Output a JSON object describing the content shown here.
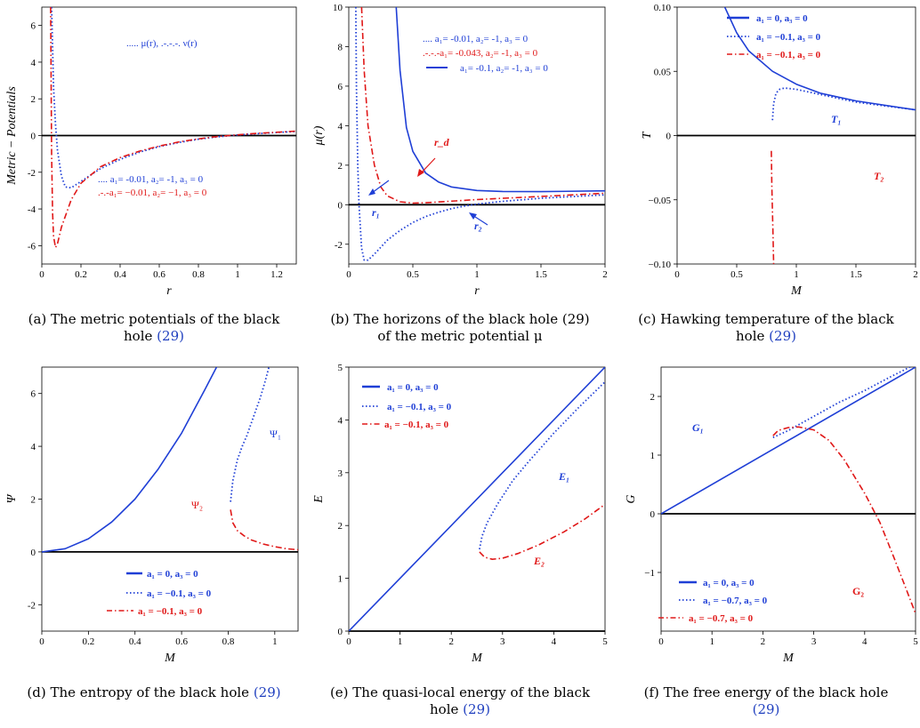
{
  "colors": {
    "blue": "#1f3fd6",
    "red": "#e01818",
    "black": "#000000",
    "ref": "#1f3fbf"
  },
  "panels": [
    {
      "caption": "(a) The metric potentials of the black hole",
      "caption_ref": "(29)"
    },
    {
      "caption": "(b) The horizons of the black hole (29) of the metric potential μ",
      "caption_ref": ""
    },
    {
      "caption": "(c) Hawking temperature of the black hole",
      "caption_ref": "(29)"
    },
    {
      "caption": "(d) The entropy of the black hole",
      "caption_ref": "(29)"
    },
    {
      "caption": "(e) The quasi-local energy of the black hole",
      "caption_ref": "(29)"
    },
    {
      "caption": "(f) The free energy of the black hole",
      "caption_ref": "(29)"
    }
  ],
  "chart_data": [
    {
      "type": "line",
      "xlabel": "r",
      "ylabel": "Metric − Potentials",
      "xlim": [
        0,
        1.3
      ],
      "ylim": [
        -7,
        7
      ],
      "xticks": [
        0,
        0.2,
        0.4,
        0.6,
        0.8,
        1,
        1.2
      ],
      "yticks": [
        -6,
        -4,
        -2,
        0,
        2,
        4,
        6
      ],
      "legend_top": "..... μ(r),  .-.-.-. ν(r)",
      "legend_bottom": [
        ".... a₁= -0.01, a₂= -1, a₃ = 0",
        ".-.-a₁= −0.01, a₂= −1, a₃ = 0"
      ],
      "series": [
        {
          "name": "μ(r)",
          "style": "dotted",
          "color": "blue",
          "x": [
            0.05,
            0.06,
            0.07,
            0.08,
            0.1,
            0.12,
            0.15,
            0.2,
            0.3,
            0.4,
            0.5,
            0.6,
            0.7,
            0.8,
            0.9,
            1.0,
            1.1,
            1.2,
            1.3
          ],
          "y": [
            7,
            2.6,
            0.6,
            -0.8,
            -2.2,
            -2.8,
            -2.85,
            -2.5,
            -1.8,
            -1.3,
            -0.9,
            -0.6,
            -0.38,
            -0.2,
            -0.07,
            0.03,
            0.1,
            0.17,
            0.22
          ]
        },
        {
          "name": "ν(r)",
          "style": "dashdot",
          "color": "red",
          "x": [
            0.045,
            0.048,
            0.05,
            0.055,
            0.06,
            0.07,
            0.08,
            0.1,
            0.15,
            0.2,
            0.3,
            0.4,
            0.5,
            0.6,
            0.7,
            0.8,
            0.9,
            1.0,
            1.1,
            1.2,
            1.3
          ],
          "y": [
            7,
            2,
            -1,
            -4.2,
            -5.5,
            -6.1,
            -5.9,
            -5,
            -3.5,
            -2.6,
            -1.7,
            -1.2,
            -0.85,
            -0.57,
            -0.35,
            -0.18,
            -0.05,
            0.04,
            0.12,
            0.18,
            0.24
          ]
        }
      ]
    },
    {
      "type": "line",
      "xlabel": "r",
      "ylabel": "μ(r)",
      "xlim": [
        0,
        2
      ],
      "ylim": [
        -3,
        10
      ],
      "xticks": [
        0,
        0.5,
        1,
        1.5,
        2
      ],
      "yticks": [
        -2,
        0,
        2,
        4,
        6,
        8,
        10
      ],
      "legend": [
        ".... a₁= -0.01, a₂= -1, a₃ = 0",
        ".-.-.-a₁= -0.043, a₂= -1, a₃ = 0",
        "a₁= -0.1, a₂= -1, a₃ = 0"
      ],
      "annotations": [
        "r_d",
        "r₁",
        "r₂"
      ],
      "series": [
        {
          "name": "a₁= -0.01",
          "style": "dotted",
          "color": "blue",
          "x": [
            0.055,
            0.06,
            0.07,
            0.08,
            0.1,
            0.12,
            0.15,
            0.2,
            0.3,
            0.4,
            0.5,
            0.6,
            0.7,
            0.8,
            0.9,
            1.0,
            1.2,
            1.5,
            2.0
          ],
          "y": [
            10,
            6,
            2,
            0,
            -2.2,
            -2.8,
            -2.8,
            -2.5,
            -1.8,
            -1.3,
            -0.9,
            -0.6,
            -0.38,
            -0.2,
            -0.07,
            0.03,
            0.17,
            0.33,
            0.5
          ]
        },
        {
          "name": "a₁= -0.043",
          "style": "dashdot",
          "color": "red",
          "x": [
            0.1,
            0.12,
            0.15,
            0.2,
            0.25,
            0.3,
            0.4,
            0.5,
            0.6,
            0.8,
            1.0,
            1.5,
            2.0
          ],
          "y": [
            10,
            6.8,
            4,
            2,
            0.9,
            0.45,
            0.15,
            0.08,
            0.1,
            0.18,
            0.26,
            0.42,
            0.58
          ]
        },
        {
          "name": "a₁= -0.1",
          "style": "solid",
          "color": "blue",
          "x": [
            0.37,
            0.4,
            0.45,
            0.5,
            0.6,
            0.7,
            0.8,
            1.0,
            1.2,
            1.5,
            2.0
          ],
          "y": [
            10,
            6.8,
            3.9,
            2.7,
            1.6,
            1.15,
            0.9,
            0.72,
            0.67,
            0.66,
            0.7
          ]
        }
      ]
    },
    {
      "type": "line",
      "xlabel": "M",
      "ylabel": "T",
      "xlim": [
        0,
        2
      ],
      "ylim": [
        -0.1,
        0.1
      ],
      "xticks": [
        0,
        0.5,
        1,
        1.5,
        2
      ],
      "yticks": [
        -0.1,
        -0.05,
        0,
        0.05,
        0.1
      ],
      "ytick_labels": [
        "−0.10",
        "−0.05",
        "0",
        "0.05",
        "0.10"
      ],
      "legend": [
        "a₁ = 0, a₃ = 0",
        "a₁ = −0.1, a₃ = 0",
        "a₁ = −0.1, a₃ = 0"
      ],
      "annotations": [
        "T₁",
        "T₂"
      ],
      "series": [
        {
          "name": "a₁ = 0",
          "style": "solid",
          "color": "blue",
          "x": [
            0.4,
            0.5,
            0.6,
            0.8,
            1.0,
            1.2,
            1.5,
            2.0
          ],
          "y": [
            0.1,
            0.08,
            0.066,
            0.05,
            0.04,
            0.033,
            0.027,
            0.02
          ]
        },
        {
          "name": "a₁ = −0.1",
          "style": "dotted",
          "color": "blue",
          "x": [
            0.8,
            0.81,
            0.83,
            0.86,
            0.9,
            1.0,
            1.2,
            1.5,
            2.0
          ],
          "y": [
            0.012,
            0.025,
            0.033,
            0.036,
            0.037,
            0.036,
            0.032,
            0.026,
            0.02
          ]
        },
        {
          "name": "a₁ = −0.1",
          "style": "dashdot",
          "color": "red",
          "x": [
            0.79,
            0.795,
            0.8,
            0.805,
            0.81
          ],
          "y": [
            -0.012,
            -0.04,
            -0.06,
            -0.08,
            -0.1
          ]
        }
      ]
    },
    {
      "type": "line",
      "xlabel": "M",
      "ylabel": "Ψ",
      "xlim": [
        0,
        1.1
      ],
      "ylim": [
        -3,
        7
      ],
      "xticks": [
        0,
        0.2,
        0.4,
        0.6,
        0.8,
        1
      ],
      "yticks": [
        -2,
        0,
        2,
        4,
        6
      ],
      "legend": [
        "a₁ = 0, a₃ = 0",
        "a₁ = −0.1, a₃ = 0",
        "a₁ = −0.1, a₃ = 0"
      ],
      "annotations": [
        "Ψ₁",
        "Ψ₂"
      ],
      "series": [
        {
          "name": "a₁ = 0",
          "style": "solid",
          "color": "blue",
          "x": [
            0,
            0.1,
            0.2,
            0.3,
            0.4,
            0.5,
            0.6,
            0.7,
            0.75
          ],
          "y": [
            0,
            0.12,
            0.5,
            1.13,
            2.0,
            3.14,
            4.5,
            6.15,
            7
          ]
        },
        {
          "name": "a₁ = −0.1 (Ψ₁)",
          "style": "dotted",
          "color": "blue",
          "x": [
            0.81,
            0.82,
            0.84,
            0.86,
            0.88,
            0.9,
            0.92,
            0.94,
            0.96,
            0.975
          ],
          "y": [
            1.9,
            2.7,
            3.5,
            4.0,
            4.4,
            4.9,
            5.4,
            5.9,
            6.5,
            7
          ]
        },
        {
          "name": "a₁ = −0.1 (Ψ₂)",
          "style": "dashdot",
          "color": "red",
          "x": [
            0.81,
            0.82,
            0.84,
            0.87,
            0.9,
            0.95,
            1.0,
            1.05,
            1.1
          ],
          "y": [
            1.6,
            1.1,
            0.8,
            0.6,
            0.45,
            0.3,
            0.2,
            0.12,
            0.08
          ]
        }
      ]
    },
    {
      "type": "line",
      "xlabel": "M",
      "ylabel": "E",
      "xlim": [
        0,
        5
      ],
      "ylim": [
        0,
        5
      ],
      "xticks": [
        0,
        1,
        2,
        3,
        4,
        5
      ],
      "yticks": [
        0,
        1,
        2,
        3,
        4,
        5
      ],
      "legend": [
        "a₁ = 0, a₃ = 0",
        "a₁ = −0.1, a₃ = 0",
        "a₁ = −0.1, a₃ = 0"
      ],
      "annotations": [
        "E₁",
        "E₂"
      ],
      "series": [
        {
          "name": "a₁ = 0",
          "style": "solid",
          "color": "blue",
          "x": [
            0,
            5
          ],
          "y": [
            0,
            5
          ]
        },
        {
          "name": "a₁ = −0.1 (E₁)",
          "style": "dotted",
          "color": "blue",
          "x": [
            2.55,
            2.6,
            2.7,
            2.9,
            3.2,
            3.5,
            4.0,
            4.5,
            5.0
          ],
          "y": [
            1.55,
            1.8,
            2.05,
            2.4,
            2.85,
            3.2,
            3.75,
            4.25,
            4.72
          ]
        },
        {
          "name": "a₁ = −0.1 (E₂)",
          "style": "dashdot",
          "color": "red",
          "x": [
            2.55,
            2.65,
            2.8,
            3.0,
            3.3,
            3.7,
            4.2,
            4.6,
            5.0
          ],
          "y": [
            1.5,
            1.4,
            1.36,
            1.38,
            1.47,
            1.63,
            1.88,
            2.12,
            2.4
          ]
        }
      ]
    },
    {
      "type": "line",
      "xlabel": "M",
      "ylabel": "G",
      "xlim": [
        0,
        5
      ],
      "ylim": [
        -2,
        2.5
      ],
      "xticks": [
        0,
        1,
        2,
        3,
        4,
        5
      ],
      "yticks": [
        -1,
        0,
        1,
        2
      ],
      "ytick_labels": [
        "−1",
        "0",
        "1",
        "2"
      ],
      "legend": [
        "a₁ = 0, a₃ = 0",
        "a₁ = −0.7, a₃ = 0",
        "a₁ = −0.7, a₃ = 0"
      ],
      "annotations": [
        "G₁",
        "G₂"
      ],
      "series": [
        {
          "name": "a₁ = 0",
          "style": "solid",
          "color": "blue",
          "x": [
            0,
            5
          ],
          "y": [
            0,
            2.5
          ]
        },
        {
          "name": "a₁ = −0.7 (G₁)",
          "style": "dotted",
          "color": "blue",
          "x": [
            2.2,
            2.5,
            3.0,
            3.5,
            4.0,
            4.5,
            5.0
          ],
          "y": [
            1.3,
            1.42,
            1.66,
            1.9,
            2.1,
            2.33,
            2.55
          ]
        },
        {
          "name": "a₁ = −0.7 (G₂)",
          "style": "dashdot",
          "color": "red",
          "x": [
            2.2,
            2.3,
            2.5,
            2.7,
            3.0,
            3.3,
            3.6,
            4.0,
            4.3,
            4.6,
            4.8,
            5.0
          ],
          "y": [
            1.33,
            1.42,
            1.47,
            1.48,
            1.43,
            1.25,
            0.92,
            0.35,
            -0.15,
            -0.8,
            -1.25,
            -1.7
          ]
        }
      ]
    }
  ]
}
